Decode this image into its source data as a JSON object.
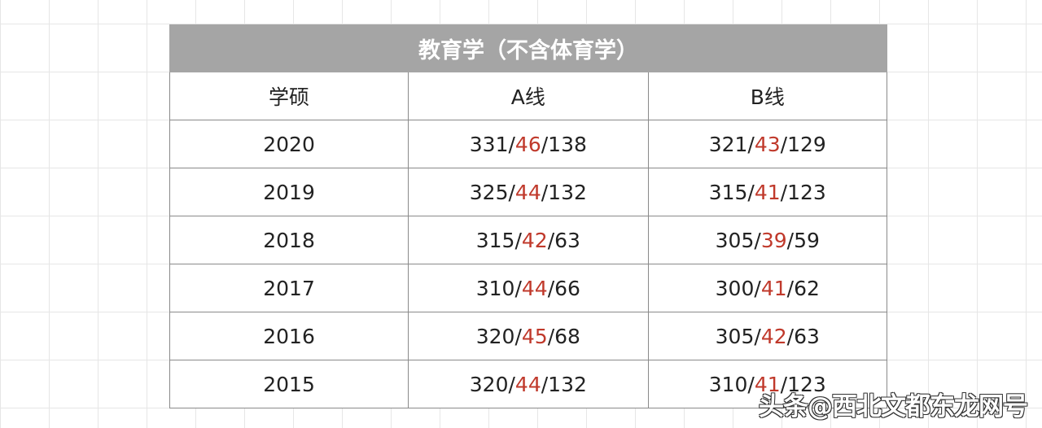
{
  "title": "教育学（不含体育学）",
  "headers": [
    "学硕",
    "A线",
    "B线"
  ],
  "rows": [
    {
      "year": "2020",
      "a": [
        "331",
        "46",
        "138"
      ],
      "b": [
        "321",
        "43",
        "129"
      ]
    },
    {
      "year": "2019",
      "a": [
        "325",
        "44",
        "132"
      ],
      "b": [
        "315",
        "41",
        "123"
      ]
    },
    {
      "year": "2018",
      "a": [
        "315",
        "42",
        "63"
      ],
      "b": [
        "305",
        "39",
        "59"
      ]
    },
    {
      "year": "2017",
      "a": [
        "310",
        "44",
        "66"
      ],
      "b": [
        "300",
        "41",
        "62"
      ]
    },
    {
      "year": "2016",
      "a": [
        "320",
        "45",
        "68"
      ],
      "b": [
        "305",
        "42",
        "63"
      ]
    },
    {
      "year": "2015",
      "a": [
        "320",
        "44",
        "132"
      ],
      "b": [
        "310",
        "41",
        "123"
      ]
    }
  ],
  "highlight_color": "#c0392b",
  "watermark": "头条@西北文都东龙网号"
}
